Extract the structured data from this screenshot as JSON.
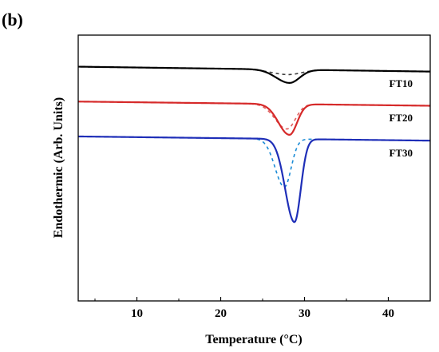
{
  "panel_label": "(b)",
  "chart_data": {
    "type": "line",
    "title": "",
    "xlabel": "Temperature (°C)",
    "ylabel": "Endothermic (Arb. Units)",
    "xlim": [
      3,
      45
    ],
    "ylim": [
      -2.2,
      1.0
    ],
    "x_ticks": [
      10,
      20,
      30,
      40
    ],
    "y_ticks": [],
    "grid": false,
    "legend": "none",
    "series": [
      {
        "name": "FT10",
        "color": "#000000",
        "baseline": 0.62,
        "slope": -0.0014,
        "solid": {
          "center": 28.2,
          "depth": 0.16,
          "width_left": 1.6,
          "width_right": 1.2
        },
        "dashed": {
          "center": 28.0,
          "depth": 0.06,
          "width_left": 2.0,
          "width_right": 1.6
        }
      },
      {
        "name": "FT20",
        "color": "#d62a2a",
        "baseline": 0.2,
        "slope": -0.0012,
        "solid": {
          "center": 28.2,
          "depth": 0.37,
          "width_left": 1.3,
          "width_right": 0.9
        },
        "dashed": {
          "center": 27.9,
          "depth": 0.3,
          "width_left": 1.4,
          "width_right": 1.0
        }
      },
      {
        "name": "FT30",
        "color": "#1f2fb8",
        "baseline": -0.22,
        "slope": -0.0012,
        "solid": {
          "center": 28.8,
          "depth": 1.0,
          "width_left": 1.1,
          "width_right": 0.75
        },
        "dashed": {
          "center": 27.6,
          "depth": 0.58,
          "width_left": 1.1,
          "width_right": 0.8
        },
        "dashed_color": "#1a8bd6"
      }
    ]
  }
}
